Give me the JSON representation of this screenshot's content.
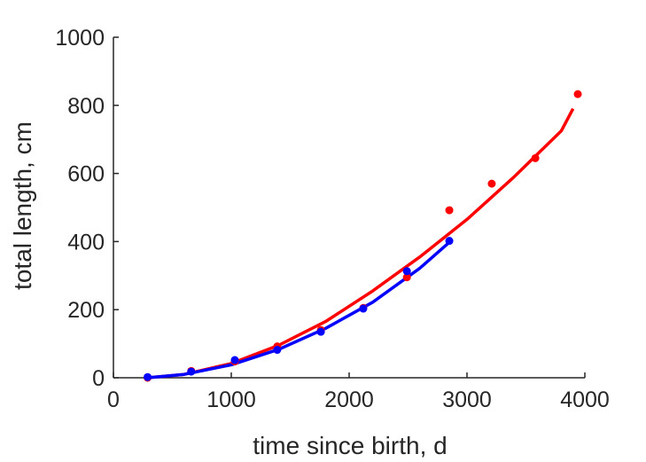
{
  "chart_data": {
    "type": "scatter",
    "title": "",
    "xlabel": "time since birth, d",
    "ylabel": "total length, cm",
    "xlim": [
      0,
      4000
    ],
    "ylim": [
      0,
      1000
    ],
    "xticks": [
      0,
      1000,
      2000,
      3000,
      4000
    ],
    "yticks": [
      0,
      200,
      400,
      600,
      800,
      1000
    ],
    "grid": false,
    "legend": "none",
    "series": [
      {
        "color": "#ff0000",
        "points": {
          "x": [
            290,
            660,
            1030,
            1390,
            1760,
            2120,
            2490,
            2850,
            3210,
            3580,
            3940
          ],
          "y": [
            0,
            20,
            48,
            92,
            140,
            205,
            295,
            492,
            570,
            645,
            833
          ]
        },
        "fit": {
          "x": [
            290,
            600,
            1000,
            1400,
            1800,
            2200,
            2600,
            3000,
            3400,
            3800,
            3900
          ],
          "y": [
            0,
            10,
            42,
            95,
            165,
            255,
            355,
            465,
            590,
            725,
            790
          ]
        }
      },
      {
        "color": "#0000ff",
        "points": {
          "x": [
            290,
            660,
            1030,
            1390,
            1760,
            2120,
            2490,
            2850
          ],
          "y": [
            2,
            18,
            52,
            82,
            135,
            203,
            313,
            402
          ]
        },
        "fit": {
          "x": [
            290,
            600,
            1000,
            1400,
            1800,
            2200,
            2600,
            2850
          ],
          "y": [
            0,
            10,
            38,
            83,
            145,
            222,
            322,
            398
          ]
        }
      }
    ]
  }
}
